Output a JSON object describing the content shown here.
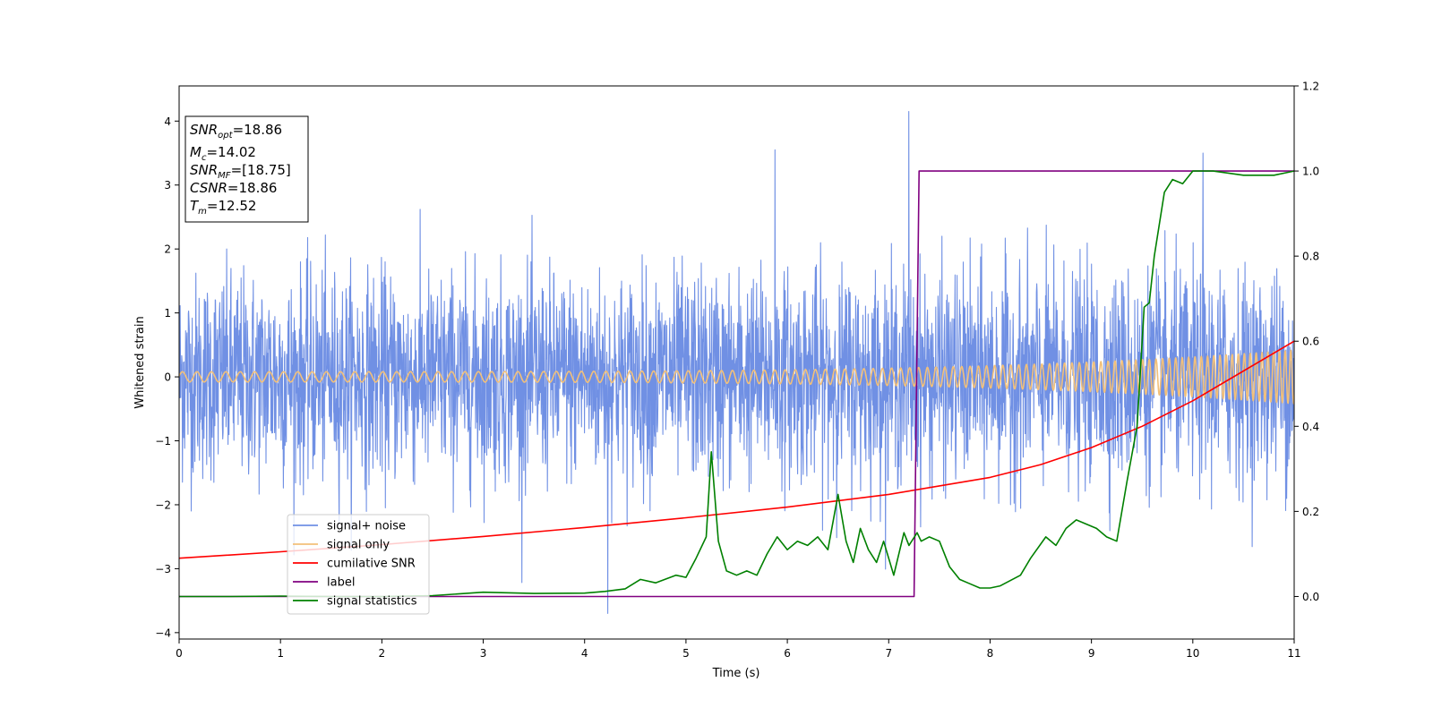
{
  "chart_data": {
    "type": "line",
    "xlabel": "Time (s)",
    "ylabel": "Whitened strain",
    "xlim": [
      0,
      11
    ],
    "ylim_left": [
      -4.1,
      4.55
    ],
    "ylim_right": [
      -0.1,
      1.2
    ],
    "x_ticks": [
      "0",
      "1",
      "2",
      "3",
      "4",
      "5",
      "6",
      "7",
      "8",
      "9",
      "10",
      "11"
    ],
    "y_ticks_left": [
      "−4",
      "−3",
      "−2",
      "−1",
      "0",
      "1",
      "2",
      "3",
      "4"
    ],
    "y_ticks_right": [
      "0.0",
      "0.2",
      "0.4",
      "0.6",
      "0.8",
      "1.0",
      "1.2"
    ],
    "annotation": [
      {
        "sym": "SNR",
        "sub": "opt",
        "val": "=18.86"
      },
      {
        "sym": "M",
        "sub": "c",
        "val": "=14.02"
      },
      {
        "sym": "SNR",
        "sub": "MF",
        "val": "=[18.75]"
      },
      {
        "sym": "CSNR",
        "sub": "",
        "val": "=18.86"
      },
      {
        "sym": "T",
        "sub": "m",
        "val": "=12.52"
      }
    ],
    "legend_position": "lower-left",
    "series": [
      {
        "name": "signal+ noise",
        "axis": "left",
        "color": "#7090e4",
        "description": "noise band",
        "std": 0.8,
        "min": -3.7,
        "max": 4.15
      },
      {
        "name": "signal only",
        "axis": "left",
        "color": "#f2c07a",
        "description": "chirp",
        "amplitude_start": 0.08,
        "amplitude_end": 0.42
      },
      {
        "name": "cumilative SNR",
        "axis": "right",
        "color": "#ff0000",
        "x": [
          0,
          1,
          2,
          3,
          4,
          5,
          6,
          7,
          7.5,
          8,
          8.5,
          9,
          9.5,
          10,
          10.5,
          11
        ],
        "y": [
          0.09,
          0.105,
          0.122,
          0.141,
          0.162,
          0.185,
          0.21,
          0.24,
          0.26,
          0.28,
          0.31,
          0.35,
          0.4,
          0.46,
          0.53,
          0.6
        ]
      },
      {
        "name": "label",
        "axis": "right",
        "color": "#800080",
        "x": [
          0,
          7.25,
          7.3,
          11
        ],
        "y": [
          0,
          0,
          1,
          1
        ]
      },
      {
        "name": "signal statistics",
        "axis": "right",
        "color": "#008000",
        "x": [
          0,
          0.5,
          1,
          1.5,
          2,
          2.5,
          3,
          3.5,
          4,
          4.2,
          4.4,
          4.55,
          4.7,
          4.9,
          5.0,
          5.1,
          5.2,
          5.25,
          5.32,
          5.4,
          5.5,
          5.6,
          5.7,
          5.8,
          5.9,
          6.0,
          6.1,
          6.2,
          6.3,
          6.4,
          6.5,
          6.58,
          6.65,
          6.72,
          6.8,
          6.88,
          6.95,
          7.05,
          7.15,
          7.2,
          7.28,
          7.32,
          7.4,
          7.5,
          7.6,
          7.7,
          7.8,
          7.9,
          8.0,
          8.1,
          8.3,
          8.4,
          8.55,
          8.65,
          8.75,
          8.85,
          8.95,
          9.05,
          9.15,
          9.25,
          9.35,
          9.45,
          9.52,
          9.57,
          9.62,
          9.72,
          9.8,
          9.9,
          10.0,
          10.2,
          10.5,
          10.8,
          11.0
        ],
        "y": [
          0,
          0,
          0.001,
          0.0,
          0.0,
          0.002,
          0.01,
          0.007,
          0.008,
          0.012,
          0.018,
          0.04,
          0.032,
          0.05,
          0.045,
          0.09,
          0.14,
          0.34,
          0.13,
          0.06,
          0.05,
          0.06,
          0.05,
          0.1,
          0.14,
          0.11,
          0.13,
          0.12,
          0.14,
          0.11,
          0.24,
          0.13,
          0.08,
          0.16,
          0.11,
          0.08,
          0.13,
          0.05,
          0.15,
          0.12,
          0.15,
          0.13,
          0.14,
          0.13,
          0.07,
          0.04,
          0.03,
          0.02,
          0.02,
          0.025,
          0.05,
          0.09,
          0.14,
          0.12,
          0.16,
          0.18,
          0.17,
          0.16,
          0.14,
          0.13,
          0.27,
          0.4,
          0.68,
          0.69,
          0.8,
          0.95,
          0.98,
          0.97,
          1.0,
          1.0,
          0.99,
          0.99,
          1.0
        ]
      }
    ]
  }
}
